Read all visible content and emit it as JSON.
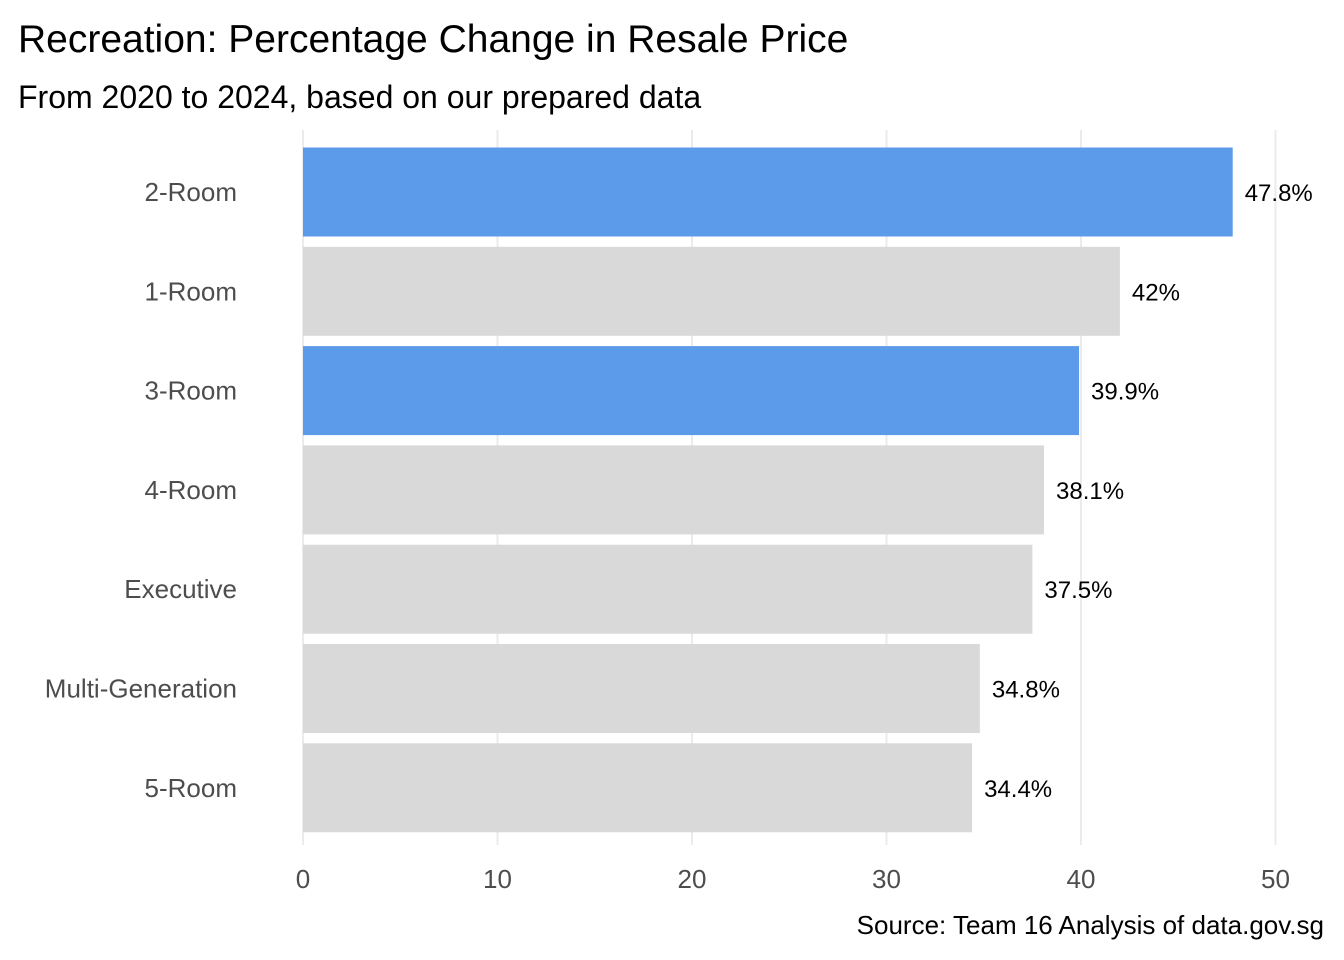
{
  "chart_data": {
    "type": "bar",
    "orientation": "horizontal",
    "title": "Recreation: Percentage Change in Resale Price",
    "subtitle": "From 2020 to 2024, based on our prepared data",
    "caption": "Source: Team 16 Analysis of data.gov.sg",
    "xlabel": "",
    "ylabel": "",
    "xlim": [
      0,
      50
    ],
    "x_ticks": [
      "0",
      "10",
      "20",
      "30",
      "40",
      "50"
    ],
    "grid": "vertical major gridlines",
    "legend": "none",
    "categories": [
      "2-Room",
      "1-Room",
      "3-Room",
      "4-Room",
      "Executive",
      "Multi-Generation",
      "5-Room"
    ],
    "values": [
      47.8,
      42,
      39.9,
      38.1,
      37.5,
      34.8,
      34.4
    ],
    "value_labels": [
      "47.8%",
      "42%",
      "39.9%",
      "38.1%",
      "37.5%",
      "34.8%",
      "34.4%"
    ],
    "highlighted": [
      true,
      false,
      true,
      false,
      false,
      false,
      false
    ],
    "colors": {
      "highlight": "#5c9aea",
      "default": "#d9d9d9"
    }
  }
}
